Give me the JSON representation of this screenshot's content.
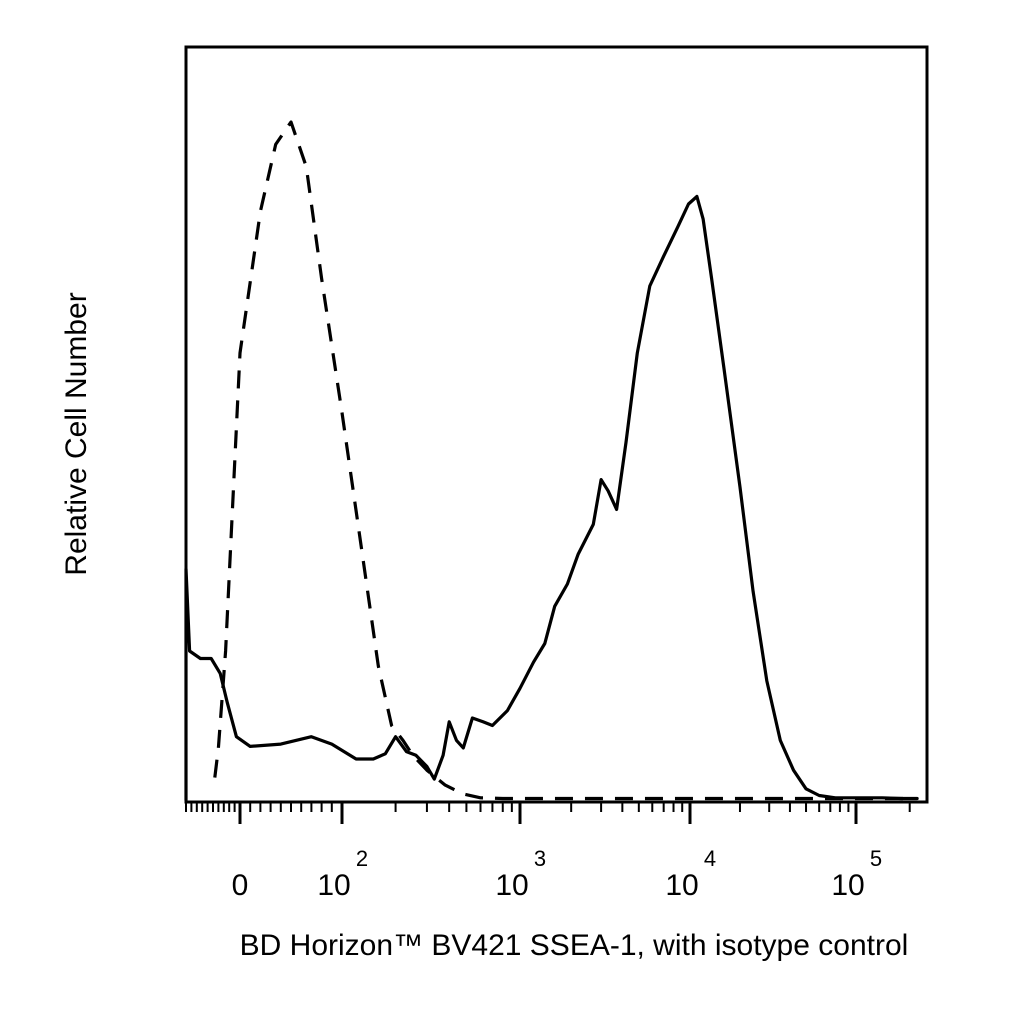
{
  "chart_data": {
    "type": "line",
    "xlabel": "BD Horizon™ BV421 SSEA-1, with isotype control",
    "ylabel": "Relative Cell Number",
    "x_scale": "biexponential",
    "x_tick_labels": [
      {
        "value": 0,
        "base": "0",
        "exp": ""
      },
      {
        "value": 100,
        "base": "10",
        "exp": "2"
      },
      {
        "value": 1000,
        "base": "10",
        "exp": "3"
      },
      {
        "value": 10000,
        "base": "10",
        "exp": "4"
      },
      {
        "value": 100000,
        "base": "10",
        "exp": "5"
      }
    ],
    "xlim": [
      -150,
      250000
    ],
    "ylim": [
      0,
      100
    ],
    "grid": false,
    "legend": "none",
    "series": [
      {
        "style": "solid",
        "color": "#000000",
        "points": [
          [
            -150,
            0
          ],
          [
            -150,
            31
          ],
          [
            -140,
            20
          ],
          [
            -110,
            19
          ],
          [
            -80,
            19
          ],
          [
            -55,
            17
          ],
          [
            -35,
            13
          ],
          [
            -10,
            8.5
          ],
          [
            10,
            7.2
          ],
          [
            40,
            7.5
          ],
          [
            70,
            8.5
          ],
          [
            90,
            7.5
          ],
          [
            120,
            5.5
          ],
          [
            150,
            5.5
          ],
          [
            175,
            6.2
          ],
          [
            200,
            8.5
          ],
          [
            230,
            6.5
          ],
          [
            260,
            6
          ],
          [
            300,
            4.5
          ],
          [
            330,
            2.8
          ],
          [
            370,
            6
          ],
          [
            400,
            10.5
          ],
          [
            440,
            8
          ],
          [
            480,
            7
          ],
          [
            540,
            11
          ],
          [
            620,
            10.5
          ],
          [
            700,
            10
          ],
          [
            850,
            12
          ],
          [
            1000,
            15
          ],
          [
            1200,
            18.5
          ],
          [
            1400,
            21
          ],
          [
            1600,
            26
          ],
          [
            1900,
            29
          ],
          [
            2200,
            33
          ],
          [
            2700,
            37
          ],
          [
            3000,
            43
          ],
          [
            3300,
            41.5
          ],
          [
            3700,
            39
          ],
          [
            4200,
            48
          ],
          [
            4900,
            60
          ],
          [
            5800,
            69
          ],
          [
            7000,
            73
          ],
          [
            8500,
            77
          ],
          [
            9800,
            80
          ],
          [
            11000,
            81
          ],
          [
            12000,
            78
          ],
          [
            13500,
            70
          ],
          [
            16000,
            58
          ],
          [
            20000,
            42
          ],
          [
            24000,
            28
          ],
          [
            29000,
            16
          ],
          [
            35000,
            8
          ],
          [
            42000,
            4
          ],
          [
            50000,
            1.5
          ],
          [
            60000,
            0.6
          ],
          [
            75000,
            0.3
          ],
          [
            100000,
            0.3
          ],
          [
            140000,
            0.3
          ],
          [
            180000,
            0.2
          ],
          [
            220000,
            0.2
          ]
        ]
      },
      {
        "style": "dashed",
        "color": "#000000",
        "points": [
          [
            -70,
            3
          ],
          [
            -60,
            7
          ],
          [
            -40,
            20
          ],
          [
            -20,
            40
          ],
          [
            0,
            60
          ],
          [
            20,
            79
          ],
          [
            35,
            88
          ],
          [
            50,
            91
          ],
          [
            65,
            85
          ],
          [
            80,
            70
          ],
          [
            100,
            52
          ],
          [
            130,
            33
          ],
          [
            160,
            18
          ],
          [
            190,
            10
          ],
          [
            220,
            8
          ],
          [
            250,
            6
          ],
          [
            300,
            4
          ],
          [
            380,
            2
          ],
          [
            480,
            0.8
          ],
          [
            600,
            0.3
          ],
          [
            800,
            0.2
          ],
          [
            2000,
            0.2
          ],
          [
            10000,
            0.2
          ],
          [
            50000,
            0.2
          ],
          [
            200000,
            0.2
          ]
        ]
      }
    ]
  }
}
